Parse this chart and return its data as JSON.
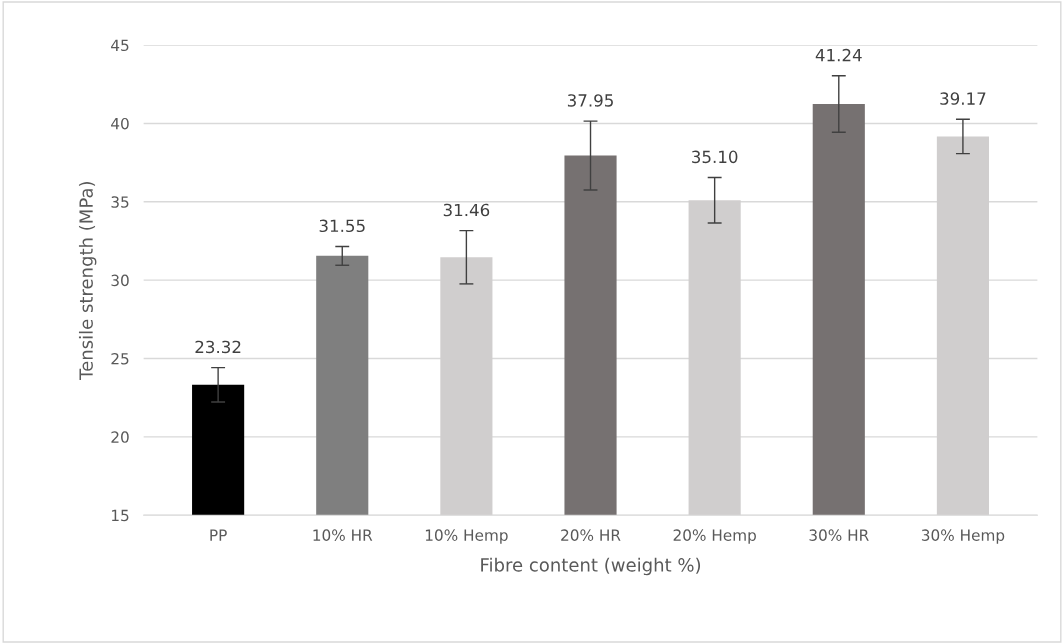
{
  "chart_data": {
    "type": "bar",
    "xlabel": "Fibre content (weight %)",
    "ylabel": "Tensile strength (MPa)",
    "categories": [
      "PP",
      "10% HR",
      "10% Hemp",
      "20% HR",
      "20% Hemp",
      "30% HR",
      "30% Hemp"
    ],
    "values": [
      23.32,
      31.55,
      31.46,
      37.95,
      35.1,
      41.24,
      39.17
    ],
    "value_labels": [
      "23.32",
      "31.55",
      "31.46",
      "37.95",
      "35.10",
      "41.24",
      "39.17"
    ],
    "errors": [
      1.1,
      0.6,
      1.7,
      2.2,
      1.45,
      1.8,
      1.1
    ],
    "colors": [
      "#000000",
      "#7f7f7f",
      "#d0cece",
      "#767171",
      "#d0cece",
      "#767171",
      "#d0cece"
    ],
    "ylim": [
      15,
      45
    ],
    "yticks": [
      15,
      20,
      25,
      30,
      35,
      40,
      45
    ],
    "grid": "y"
  }
}
